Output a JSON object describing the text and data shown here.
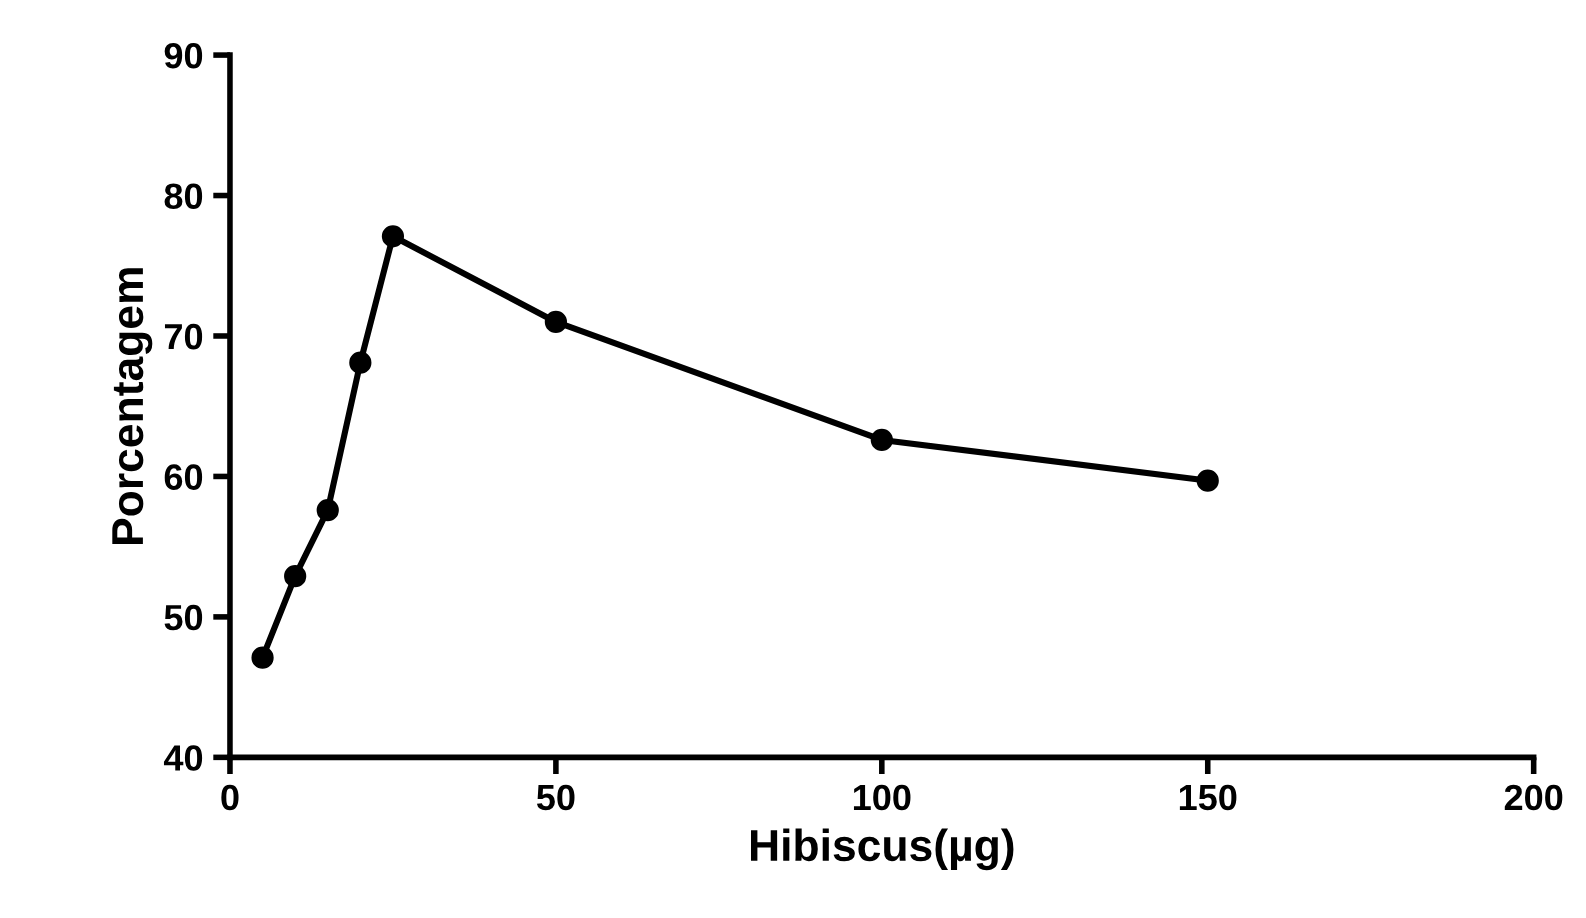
{
  "chart_data": {
    "type": "line",
    "xlabel": "Hibiscus(µg)",
    "ylabel": "Porcentagem",
    "x": [
      5,
      10,
      15,
      20,
      25,
      50,
      100,
      150
    ],
    "series": [
      {
        "color": "#000000",
        "values": [
          47.1,
          52.9,
          57.6,
          68.1,
          77.1,
          71.0,
          62.6,
          59.7
        ]
      }
    ],
    "xlim": [
      0,
      200
    ],
    "xticks": [
      0,
      50,
      100,
      150,
      200
    ],
    "ylim": [
      40,
      90
    ],
    "yticks": [
      40,
      50,
      60,
      70,
      80,
      90
    ],
    "grid": false,
    "legend": false,
    "marker": "circle",
    "line_style": "solid"
  }
}
